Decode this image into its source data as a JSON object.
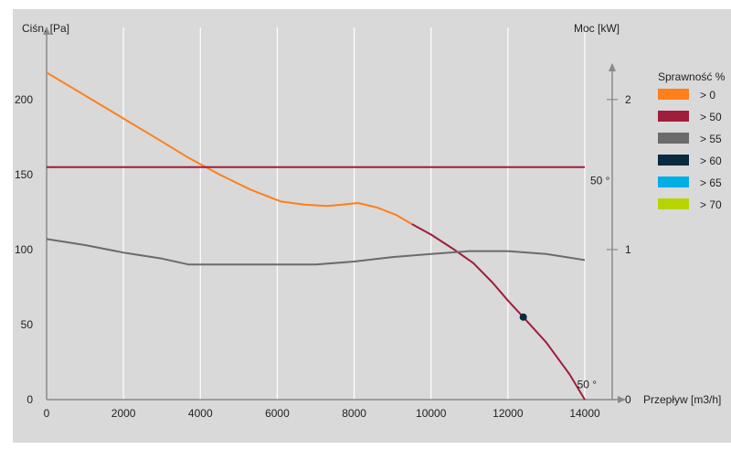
{
  "chart_data": {
    "type": "line",
    "y_left_label": "Ciśn. [Pa]",
    "y_right_label": "Moc [kW]",
    "x_label": "Przepływ [m3/h]",
    "xlim": [
      0,
      14000
    ],
    "ylim_left": [
      0,
      220
    ],
    "ylim_right": [
      0,
      2.2
    ],
    "x_ticks": [
      0,
      2000,
      4000,
      6000,
      8000,
      10000,
      12000,
      14000
    ],
    "y_left_ticks": [
      0,
      50,
      100,
      150,
      200
    ],
    "y_right_ticks": [
      0,
      1,
      2
    ],
    "grid": "vertical",
    "legend": {
      "title": "Sprawność %",
      "placement": "right",
      "items": [
        {
          "label": "> 0",
          "color": "#ff7f1a"
        },
        {
          "label": "> 50",
          "color": "#a01e3c"
        },
        {
          "label": "> 55",
          "color": "#6b6b6b"
        },
        {
          "label": "> 60",
          "color": "#0a2a40"
        },
        {
          "label": "> 65",
          "color": "#00aee8"
        },
        {
          "label": "> 70",
          "color": "#b8d400"
        }
      ]
    },
    "series": [
      {
        "axis": "left",
        "color_segments": [
          {
            "color": "#ff7f1a",
            "x": [
              0,
              1500,
              3000,
              3700,
              4500,
              5300,
              6100,
              6700,
              7300,
              7700,
              8100,
              8600,
              9100,
              9500
            ],
            "y": [
              218,
              195,
              172,
              161,
              150,
              140,
              132,
              130,
              129,
              130,
              131,
              128,
              123,
              117
            ]
          },
          {
            "color": "#a01e3c",
            "x": [
              9500,
              10000,
              10600,
              11100,
              11600,
              12000,
              12400,
              13000,
              13600,
              14000
            ],
            "y": [
              117,
              110,
              100,
              91,
              78,
              66,
              55,
              38,
              17,
              0
            ]
          }
        ]
      },
      {
        "axis": "right",
        "color": "#6b6b6b",
        "x": [
          0,
          1000,
          2000,
          3000,
          3700,
          5000,
          6000,
          7000,
          8000,
          9000,
          10000,
          11000,
          12000,
          13000,
          14000
        ],
        "y": [
          1.07,
          1.03,
          0.98,
          0.94,
          0.9,
          0.9,
          0.9,
          0.9,
          0.92,
          0.95,
          0.97,
          0.99,
          0.99,
          0.97,
          0.93
        ]
      },
      {
        "axis": "left",
        "color": "#a01e3c",
        "x": [
          0,
          14000
        ],
        "y": [
          155,
          155
        ]
      }
    ],
    "points": [
      {
        "x": 12400,
        "y": 55,
        "color": "#0a2a40"
      }
    ],
    "annotations": [
      {
        "text": "50 °",
        "x": 14000,
        "y": 146,
        "axis": "left"
      },
      {
        "text": "50 °",
        "x": 13800,
        "y": 10,
        "axis": "left"
      }
    ]
  }
}
